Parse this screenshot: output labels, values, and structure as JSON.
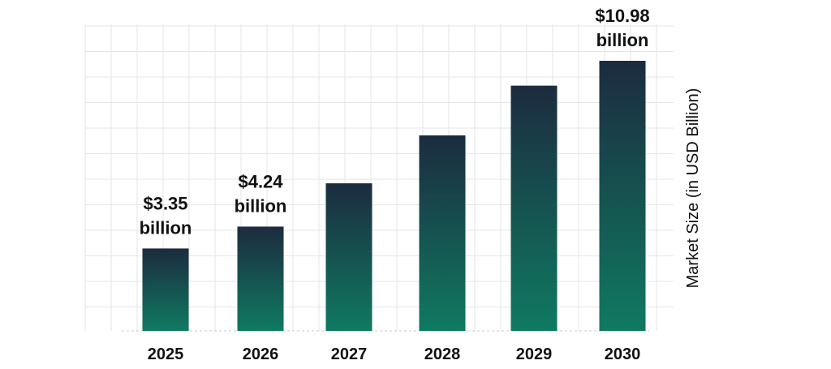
{
  "chart_data": {
    "type": "bar",
    "categories": [
      "2025",
      "2026",
      "2027",
      "2028",
      "2029",
      "2030"
    ],
    "values": [
      3.35,
      4.24,
      6.0,
      7.95,
      9.97,
      10.98
    ],
    "ylabel": "Market Size (in USD Billion)",
    "ylim": [
      0,
      11.2
    ],
    "grid": true,
    "data_labels": [
      {
        "index": 0,
        "lines": [
          "$3.35",
          "billion"
        ]
      },
      {
        "index": 1,
        "lines": [
          "$4.24",
          "billion"
        ]
      },
      {
        "index": 5,
        "lines": [
          "$10.98",
          "billion"
        ]
      }
    ],
    "colors": {
      "bar_top": "#1c2b3f",
      "bar_bottom": "#0f7a61",
      "grid": "#e6e6e6",
      "baseline": "#c9c9c9"
    }
  }
}
